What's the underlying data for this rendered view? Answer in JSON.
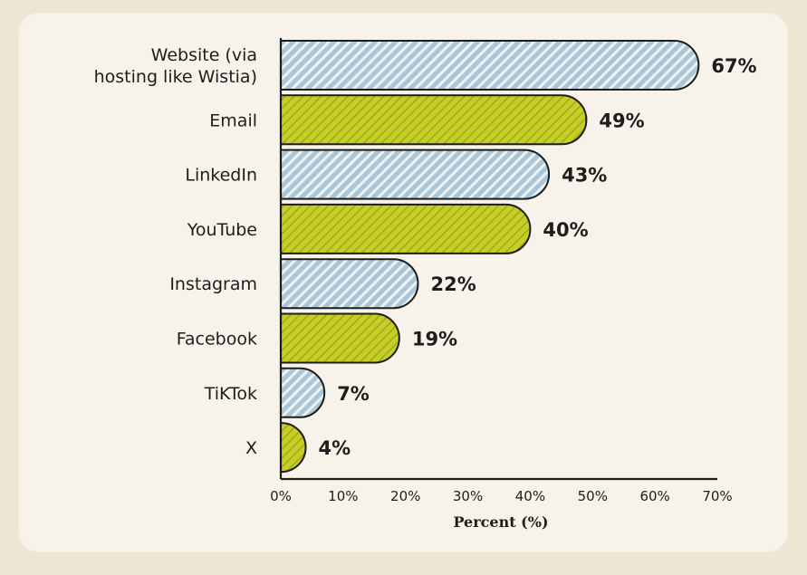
{
  "chart_data": {
    "type": "bar",
    "orientation": "horizontal",
    "categories": [
      "Website (via\nhosting like Wistia)",
      "Email",
      "LinkedIn",
      "YouTube",
      "Instagram",
      "Facebook",
      "TiKTok",
      "X"
    ],
    "values": [
      67,
      49,
      43,
      40,
      22,
      19,
      7,
      4
    ],
    "value_labels": [
      "67%",
      "49%",
      "43%",
      "40%",
      "22%",
      "19%",
      "7%",
      "4%"
    ],
    "title": "",
    "xlabel": "Percent (%)",
    "ylabel": "",
    "xlim": [
      0,
      70
    ],
    "xticks": [
      0,
      10,
      20,
      30,
      40,
      50,
      60,
      70
    ],
    "xtick_labels": [
      "0%",
      "10%",
      "20%",
      "30%",
      "40%",
      "50%",
      "60%",
      "70%"
    ],
    "grid": false,
    "legend": "none",
    "bar_patterns": [
      "blue-hatch",
      "green-hatch",
      "blue-hatch",
      "green-hatch",
      "blue-hatch",
      "green-hatch",
      "blue-hatch",
      "green-hatch"
    ]
  },
  "colors": {
    "page_background": "#efe5d3",
    "card_background": "#f7f3ea",
    "blue_bar": "#a9c7da",
    "blue_hatch": "#f4f3ee",
    "green_bar": "#c7cf26",
    "green_hatch": "#7f8415",
    "outline": "#1d1d1d",
    "text": "#1d1d1d"
  }
}
